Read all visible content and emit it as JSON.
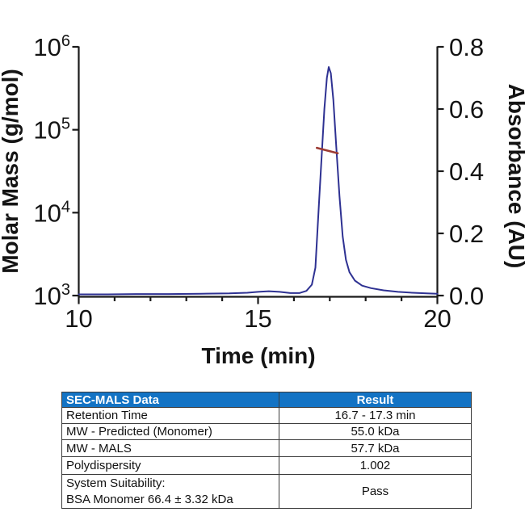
{
  "chart_data": {
    "type": "line",
    "title": "",
    "xlabel": "Time (min)",
    "x_range": [
      10,
      20
    ],
    "x_major_ticks": [
      {
        "value": 10,
        "label": "10"
      },
      {
        "value": 15,
        "label": "15"
      },
      {
        "value": 20,
        "label": "20"
      }
    ],
    "x_minor_step": 1,
    "grid": "off",
    "legend": "none",
    "left_axis": {
      "label": "Molar Mass (g/mol)",
      "scale": "log",
      "range_log10": [
        3,
        6
      ],
      "ticks": [
        {
          "value": 1000000,
          "base": "10",
          "exp": "6"
        },
        {
          "value": 100000,
          "base": "10",
          "exp": "5"
        },
        {
          "value": 10000,
          "base": "10",
          "exp": "4"
        },
        {
          "value": 1000,
          "base": "10",
          "exp": "3"
        }
      ]
    },
    "right_axis": {
      "label": "Absorbance (AU)",
      "range": [
        0,
        0.8
      ],
      "ticks": [
        {
          "value": 0.8,
          "label": "0.8"
        },
        {
          "value": 0.6,
          "label": "0.6"
        },
        {
          "value": 0.4,
          "label": "0.4"
        },
        {
          "value": 0.2,
          "label": "0.2"
        },
        {
          "value": 0.0,
          "label": "0.0"
        }
      ]
    },
    "series": [
      {
        "name": "uv-absorbance-trace",
        "axis": "right",
        "color": "#2e3192",
        "width": 2,
        "points": [
          [
            10.0,
            0.004
          ],
          [
            10.8,
            0.004
          ],
          [
            11.6,
            0.005
          ],
          [
            12.5,
            0.005
          ],
          [
            13.4,
            0.006
          ],
          [
            14.2,
            0.007
          ],
          [
            14.7,
            0.009
          ],
          [
            15.0,
            0.012
          ],
          [
            15.3,
            0.014
          ],
          [
            15.6,
            0.012
          ],
          [
            15.9,
            0.008
          ],
          [
            16.15,
            0.008
          ],
          [
            16.35,
            0.015
          ],
          [
            16.5,
            0.035
          ],
          [
            16.6,
            0.09
          ],
          [
            16.7,
            0.3
          ],
          [
            16.78,
            0.46
          ],
          [
            16.85,
            0.6
          ],
          [
            16.92,
            0.7
          ],
          [
            16.97,
            0.735
          ],
          [
            17.03,
            0.715
          ],
          [
            17.1,
            0.63
          ],
          [
            17.18,
            0.48
          ],
          [
            17.27,
            0.32
          ],
          [
            17.36,
            0.19
          ],
          [
            17.45,
            0.115
          ],
          [
            17.55,
            0.075
          ],
          [
            17.7,
            0.048
          ],
          [
            17.9,
            0.032
          ],
          [
            18.15,
            0.024
          ],
          [
            18.5,
            0.017
          ],
          [
            18.9,
            0.012
          ],
          [
            19.3,
            0.009
          ],
          [
            19.7,
            0.007
          ],
          [
            20.0,
            0.006
          ]
        ]
      },
      {
        "name": "mals-molar-mass-segment",
        "axis": "left",
        "color": "#9c3a33",
        "width": 2.6,
        "points": [
          [
            16.64,
            60500
          ],
          [
            17.22,
            52000
          ]
        ]
      }
    ]
  },
  "table": {
    "header": [
      "SEC-MALS Data",
      "Result"
    ],
    "header_bg": "#1373c4",
    "rows": [
      {
        "label": "Retention Time",
        "result": "16.7 - 17.3 min"
      },
      {
        "label": "MW - Predicted (Monomer)",
        "result": "55.0 kDa"
      },
      {
        "label": "MW - MALS",
        "result": "57.7 kDa"
      },
      {
        "label": "Polydispersity",
        "result": "1.002"
      },
      {
        "label": "System Suitability:",
        "label2": "BSA Monomer 66.4 ± 3.32 kDa",
        "result": "Pass"
      }
    ]
  }
}
